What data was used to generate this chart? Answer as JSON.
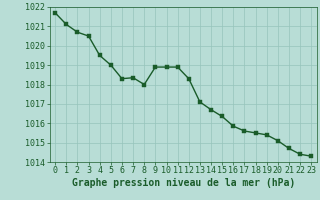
{
  "x": [
    0,
    1,
    2,
    3,
    4,
    5,
    6,
    7,
    8,
    9,
    10,
    11,
    12,
    13,
    14,
    15,
    16,
    17,
    18,
    19,
    20,
    21,
    22,
    23
  ],
  "y": [
    1021.7,
    1021.1,
    1020.7,
    1020.5,
    1019.5,
    1019.0,
    1018.3,
    1018.35,
    1018.0,
    1018.9,
    1018.9,
    1018.9,
    1018.3,
    1017.1,
    1016.7,
    1016.35,
    1015.85,
    1015.6,
    1015.5,
    1015.4,
    1015.1,
    1014.7,
    1014.4,
    1014.3
  ],
  "bg_color": "#b8ddd6",
  "grid_color": "#96c4bb",
  "line_color": "#1a5c2a",
  "marker_color": "#1a5c2a",
  "xlabel": "Graphe pression niveau de la mer (hPa)",
  "ylim": [
    1014,
    1022
  ],
  "xlim": [
    -0.5,
    23.5
  ],
  "yticks": [
    1014,
    1015,
    1016,
    1017,
    1018,
    1019,
    1020,
    1021,
    1022
  ],
  "xticks": [
    0,
    1,
    2,
    3,
    4,
    5,
    6,
    7,
    8,
    9,
    10,
    11,
    12,
    13,
    14,
    15,
    16,
    17,
    18,
    19,
    20,
    21,
    22,
    23
  ],
  "xlabel_fontsize": 7,
  "tick_fontsize": 6,
  "line_width": 1.0,
  "marker_size": 2.8
}
